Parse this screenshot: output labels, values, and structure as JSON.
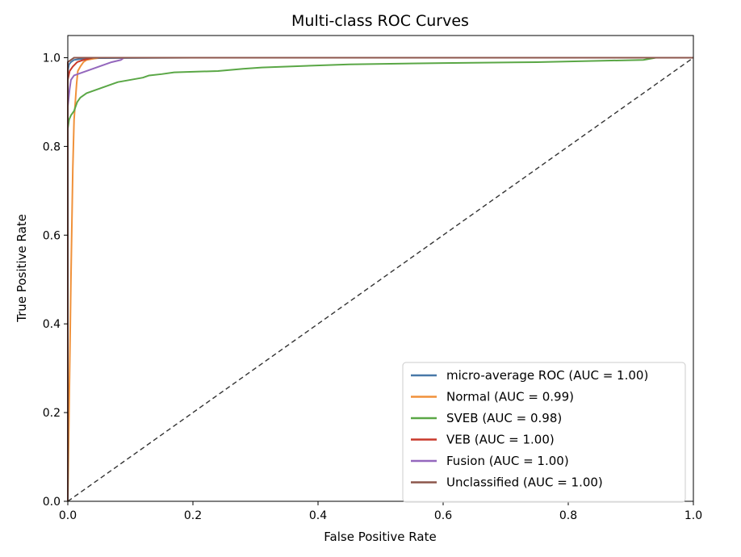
{
  "chart_data": {
    "type": "line",
    "title": "Multi-class ROC Curves",
    "xlabel": "False Positive Rate",
    "ylabel": "True Positive Rate",
    "xlim": [
      0.0,
      1.0
    ],
    "ylim": [
      0.0,
      1.05
    ],
    "x_ticks": [
      0.0,
      0.2,
      0.4,
      0.6,
      0.8,
      1.0
    ],
    "x_tick_labels": [
      "0.0",
      "0.2",
      "0.4",
      "0.6",
      "0.8",
      "1.0"
    ],
    "y_ticks": [
      0.0,
      0.2,
      0.4,
      0.6,
      0.8,
      1.0
    ],
    "y_tick_labels": [
      "0.0",
      "0.2",
      "0.4",
      "0.6",
      "0.8",
      "1.0"
    ],
    "grid": false,
    "legend_position": "lower-right",
    "chance_line": {
      "x": [
        0,
        1
      ],
      "y": [
        0,
        1
      ],
      "color": "#333333",
      "style": "dashed"
    },
    "series": [
      {
        "name": "micro-average ROC (AUC = 1.00)",
        "color": "#4878a8",
        "points": [
          [
            0,
            0
          ],
          [
            0,
            0.97
          ],
          [
            0.002,
            0.985
          ],
          [
            0.005,
            0.99
          ],
          [
            0.01,
            0.995
          ],
          [
            0.02,
            0.997
          ],
          [
            0.05,
            0.999
          ],
          [
            0.2,
            1.0
          ],
          [
            1.0,
            1.0
          ]
        ]
      },
      {
        "name": "Normal (AUC = 0.99)",
        "color": "#f0913a",
        "points": [
          [
            0,
            0
          ],
          [
            0.005,
            0.5
          ],
          [
            0.008,
            0.75
          ],
          [
            0.01,
            0.86
          ],
          [
            0.012,
            0.9
          ],
          [
            0.014,
            0.94
          ],
          [
            0.016,
            0.97
          ],
          [
            0.02,
            0.98
          ],
          [
            0.025,
            0.99
          ],
          [
            0.03,
            0.995
          ],
          [
            0.05,
            1.0
          ],
          [
            1.0,
            1.0
          ]
        ]
      },
      {
        "name": "SVEB (AUC = 0.98)",
        "color": "#5aa746",
        "points": [
          [
            0,
            0.84
          ],
          [
            0.002,
            0.86
          ],
          [
            0.005,
            0.87
          ],
          [
            0.01,
            0.88
          ],
          [
            0.015,
            0.9
          ],
          [
            0.02,
            0.91
          ],
          [
            0.03,
            0.92
          ],
          [
            0.04,
            0.925
          ],
          [
            0.05,
            0.93
          ],
          [
            0.06,
            0.935
          ],
          [
            0.07,
            0.94
          ],
          [
            0.08,
            0.945
          ],
          [
            0.1,
            0.95
          ],
          [
            0.12,
            0.955
          ],
          [
            0.13,
            0.96
          ],
          [
            0.15,
            0.963
          ],
          [
            0.17,
            0.967
          ],
          [
            0.24,
            0.97
          ],
          [
            0.28,
            0.975
          ],
          [
            0.31,
            0.978
          ],
          [
            0.45,
            0.985
          ],
          [
            0.6,
            0.988
          ],
          [
            0.75,
            0.99
          ],
          [
            0.92,
            0.995
          ],
          [
            0.94,
            1.0
          ],
          [
            1.0,
            1.0
          ]
        ]
      },
      {
        "name": "VEB (AUC = 1.00)",
        "color": "#c8392b",
        "points": [
          [
            0,
            0
          ],
          [
            0,
            0.95
          ],
          [
            0.003,
            0.97
          ],
          [
            0.008,
            0.98
          ],
          [
            0.015,
            0.99
          ],
          [
            0.025,
            0.995
          ],
          [
            0.04,
            1.0
          ],
          [
            1.0,
            1.0
          ]
        ]
      },
      {
        "name": "Fusion (AUC = 1.00)",
        "color": "#9467bd",
        "points": [
          [
            0,
            0
          ],
          [
            0,
            0.89
          ],
          [
            0.003,
            0.93
          ],
          [
            0.005,
            0.95
          ],
          [
            0.01,
            0.96
          ],
          [
            0.02,
            0.965
          ],
          [
            0.03,
            0.97
          ],
          [
            0.04,
            0.975
          ],
          [
            0.06,
            0.985
          ],
          [
            0.07,
            0.99
          ],
          [
            0.085,
            0.995
          ],
          [
            0.09,
            1.0
          ],
          [
            1.0,
            1.0
          ]
        ]
      },
      {
        "name": "Unclassified (AUC = 1.00)",
        "color": "#8c564b",
        "points": [
          [
            0,
            0
          ],
          [
            0,
            0.99
          ],
          [
            0.005,
            0.995
          ],
          [
            0.01,
            1.0
          ],
          [
            1.0,
            1.0
          ]
        ]
      }
    ]
  }
}
